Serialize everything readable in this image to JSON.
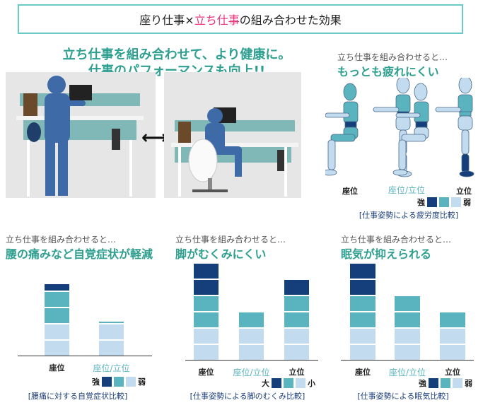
{
  "title": {
    "prefix": "座り仕事×",
    "highlight": "立ち仕事",
    "suffix": "の組み合わせた効果"
  },
  "headline": {
    "line1": "立ち仕事を組み合わせて、より健康に。",
    "line2": "仕事のパフォーマンスも向上!!"
  },
  "photos": {
    "arrow": "⟷"
  },
  "fatigue": {
    "sub": "立ち仕事を組み合わせると…",
    "heading": "もっとも疲れにくい",
    "categories": [
      "座位",
      "座位/立位",
      "立位"
    ],
    "legend": {
      "high": "強",
      "low": "弱"
    },
    "caption": "[仕事姿勢による疲労度比較]"
  },
  "colors": {
    "strong": "#153f7a",
    "mid": "#5ab4c0",
    "weak": "#c3dbef",
    "accent": "#2fa090",
    "pink": "#e8307a",
    "frame": "#6ccac4"
  },
  "chart_data": [
    {
      "type": "bar",
      "stacked": true,
      "sub": "立ち仕事を組み合わせると…",
      "title": "腰の痛みなど自覚症状が軽減",
      "categories": [
        "座位",
        "座位/立位"
      ],
      "series": [
        {
          "level": "weak",
          "values": [
            2,
            2
          ]
        },
        {
          "level": "mid",
          "values": [
            2,
            0.1
          ]
        },
        {
          "level": "strong",
          "values": [
            0.5,
            0
          ]
        }
      ],
      "legend": {
        "high": "強",
        "low": "弱"
      },
      "caption": "[腰痛に対する自覚症状比較]"
    },
    {
      "type": "bar",
      "stacked": true,
      "sub": "立ち仕事を組み合わせると…",
      "title": "脚がむくみにくい",
      "categories": [
        "座位",
        "座位/立位",
        "立位"
      ],
      "series": [
        {
          "level": "weak",
          "values": [
            2,
            2,
            2
          ]
        },
        {
          "level": "mid",
          "values": [
            2,
            1,
            2
          ]
        },
        {
          "level": "strong",
          "values": [
            2,
            0,
            1
          ]
        }
      ],
      "legend": {
        "high": "大",
        "low": "小"
      },
      "caption": "[仕事姿勢による脚のむくみ比較]"
    },
    {
      "type": "bar",
      "stacked": true,
      "sub": "立ち仕事を組み合わせると…",
      "title": "眠気が抑えられる",
      "categories": [
        "座位",
        "座位/立位",
        "立位"
      ],
      "series": [
        {
          "level": "weak",
          "values": [
            2,
            2,
            2
          ]
        },
        {
          "level": "mid",
          "values": [
            2,
            2,
            1
          ]
        },
        {
          "level": "strong",
          "values": [
            2,
            0,
            0
          ]
        }
      ],
      "legend": {
        "high": "強",
        "low": "弱"
      },
      "caption": "[仕事姿勢による眠気比較]"
    }
  ]
}
